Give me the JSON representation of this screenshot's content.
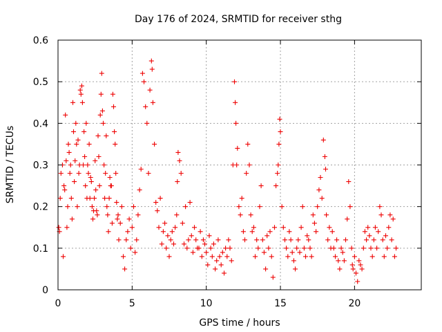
{
  "chart_data": {
    "type": "scatter",
    "title": "Day 176 of 2024, SRMTID for receiver sthg",
    "xlabel": "GPS time / hours",
    "ylabel": "SRMTID / TECUs",
    "xlim": [
      0,
      24.5
    ],
    "ylim": [
      0,
      0.6
    ],
    "xticks": [
      0,
      5,
      10,
      15,
      20
    ],
    "xtick_labels": [
      "0",
      "5",
      "10",
      "15",
      "20"
    ],
    "yticks": [
      0,
      0.1,
      0.2,
      0.3,
      0.4,
      0.5,
      0.6
    ],
    "ytick_labels": [
      "0",
      "0.1",
      "0.2",
      "0.3",
      "0.4",
      "0.5",
      "0.6"
    ],
    "grid": true,
    "marker": "+",
    "marker_color": "#ee0000",
    "series": [
      {
        "name": "SRMTID",
        "x": [
          0.05,
          0.1,
          0.15,
          0.2,
          0.3,
          0.35,
          0.4,
          0.45,
          0.5,
          0.55,
          0.6,
          0.65,
          0.7,
          0.75,
          0.8,
          0.85,
          0.9,
          0.95,
          1.0,
          1.05,
          1.1,
          1.15,
          1.2,
          1.25,
          1.3,
          1.35,
          1.4,
          1.45,
          1.5,
          1.55,
          1.6,
          1.65,
          1.7,
          1.75,
          1.8,
          1.85,
          1.9,
          1.95,
          2.0,
          2.05,
          2.1,
          2.15,
          2.2,
          2.25,
          2.3,
          2.35,
          2.4,
          2.45,
          2.5,
          2.55,
          2.6,
          2.65,
          2.7,
          2.75,
          2.8,
          2.85,
          2.9,
          2.95,
          3.0,
          3.05,
          3.1,
          3.15,
          3.2,
          3.25,
          3.3,
          3.35,
          3.4,
          3.45,
          3.5,
          3.55,
          3.6,
          3.65,
          3.7,
          3.75,
          3.8,
          3.85,
          3.9,
          3.95,
          4.0,
          4.05,
          4.1,
          4.2,
          4.3,
          4.4,
          4.5,
          4.6,
          4.7,
          4.8,
          4.9,
          5.0,
          5.1,
          5.2,
          5.3,
          5.4,
          5.5,
          5.6,
          5.7,
          5.8,
          5.9,
          6.0,
          6.1,
          6.2,
          6.3,
          6.35,
          6.4,
          6.5,
          6.6,
          6.7,
          6.8,
          6.9,
          7.0,
          7.1,
          7.2,
          7.3,
          7.4,
          7.5,
          7.6,
          7.7,
          7.8,
          7.9,
          8.0,
          8.05,
          8.1,
          8.2,
          8.3,
          8.4,
          8.5,
          8.6,
          8.7,
          8.8,
          8.9,
          9.0,
          9.1,
          9.2,
          9.3,
          9.4,
          9.5,
          9.6,
          9.7,
          9.8,
          9.9,
          10.0,
          10.1,
          10.2,
          10.3,
          10.4,
          10.5,
          10.6,
          10.7,
          10.8,
          10.9,
          11.0,
          11.1,
          11.2,
          11.3,
          11.4,
          11.5,
          11.6,
          11.7,
          11.8,
          11.9,
          11.95,
          12.0,
          12.05,
          12.1,
          12.2,
          12.3,
          12.4,
          12.5,
          12.6,
          12.7,
          12.8,
          12.9,
          13.0,
          13.1,
          13.2,
          13.3,
          13.4,
          13.5,
          13.6,
          13.7,
          13.8,
          13.9,
          14.0,
          14.1,
          14.2,
          14.3,
          14.4,
          14.5,
          14.6,
          14.7,
          14.8,
          14.85,
          14.9,
          14.95,
          15.0,
          15.1,
          15.2,
          15.3,
          15.4,
          15.5,
          15.6,
          15.7,
          15.8,
          15.9,
          16.0,
          16.1,
          16.2,
          16.3,
          16.4,
          16.5,
          16.6,
          16.7,
          16.8,
          16.9,
          17.0,
          17.1,
          17.2,
          17.3,
          17.4,
          17.5,
          17.6,
          17.7,
          17.8,
          17.9,
          18.0,
          18.05,
          18.1,
          18.2,
          18.3,
          18.4,
          18.5,
          18.6,
          18.7,
          18.8,
          18.9,
          19.0,
          19.1,
          19.2,
          19.3,
          19.4,
          19.5,
          19.6,
          19.7,
          19.8,
          19.85,
          19.9,
          20.0,
          20.1,
          20.2,
          20.3,
          20.4,
          20.5,
          20.6,
          20.7,
          20.8,
          20.9,
          21.0,
          21.1,
          21.2,
          21.3,
          21.4,
          21.5,
          21.6,
          21.7,
          21.8,
          21.9,
          22.0,
          22.1,
          22.2,
          22.3,
          22.4,
          22.5,
          22.6,
          22.7,
          22.8
        ],
        "y": [
          0.15,
          0.14,
          0.22,
          0.28,
          0.3,
          0.08,
          0.25,
          0.24,
          0.42,
          0.31,
          0.15,
          0.2,
          0.35,
          0.33,
          0.28,
          0.3,
          0.22,
          0.17,
          0.45,
          0.38,
          0.26,
          0.31,
          0.4,
          0.35,
          0.2,
          0.36,
          0.28,
          0.3,
          0.48,
          0.47,
          0.49,
          0.45,
          0.3,
          0.38,
          0.32,
          0.25,
          0.4,
          0.22,
          0.3,
          0.28,
          0.35,
          0.22,
          0.27,
          0.26,
          0.2,
          0.17,
          0.19,
          0.22,
          0.31,
          0.24,
          0.19,
          0.18,
          0.37,
          0.32,
          0.25,
          0.42,
          0.47,
          0.52,
          0.43,
          0.4,
          0.3,
          0.22,
          0.28,
          0.37,
          0.2,
          0.18,
          0.14,
          0.22,
          0.27,
          0.25,
          0.25,
          0.16,
          0.47,
          0.44,
          0.38,
          0.35,
          0.28,
          0.21,
          0.17,
          0.18,
          0.12,
          0.16,
          0.2,
          0.08,
          0.05,
          0.12,
          0.14,
          0.17,
          0.1,
          0.15,
          0.2,
          0.09,
          0.12,
          0.18,
          0.24,
          0.29,
          0.52,
          0.5,
          0.44,
          0.4,
          0.28,
          0.48,
          0.55,
          0.53,
          0.45,
          0.35,
          0.21,
          0.19,
          0.15,
          0.22,
          0.11,
          0.14,
          0.16,
          0.1,
          0.13,
          0.08,
          0.12,
          0.14,
          0.11,
          0.15,
          0.18,
          0.26,
          0.33,
          0.31,
          0.28,
          0.16,
          0.11,
          0.2,
          0.1,
          0.12,
          0.21,
          0.13,
          0.09,
          0.15,
          0.12,
          0.1,
          0.1,
          0.14,
          0.08,
          0.12,
          0.11,
          0.09,
          0.06,
          0.13,
          0.1,
          0.08,
          0.11,
          0.05,
          0.07,
          0.12,
          0.08,
          0.06,
          0.09,
          0.04,
          0.1,
          0.08,
          0.12,
          0.1,
          0.07,
          0.3,
          0.5,
          0.45,
          0.4,
          0.3,
          0.34,
          0.2,
          0.18,
          0.22,
          0.14,
          0.12,
          0.28,
          0.35,
          0.3,
          0.18,
          0.14,
          0.15,
          0.08,
          0.12,
          0.1,
          0.2,
          0.25,
          0.12,
          0.09,
          0.05,
          0.13,
          0.1,
          0.14,
          0.08,
          0.03,
          0.15,
          0.25,
          0.28,
          0.3,
          0.35,
          0.41,
          0.38,
          0.2,
          0.15,
          0.12,
          0.1,
          0.08,
          0.14,
          0.12,
          0.09,
          0.07,
          0.05,
          0.1,
          0.12,
          0.09,
          0.15,
          0.2,
          0.1,
          0.08,
          0.13,
          0.12,
          0.1,
          0.08,
          0.18,
          0.16,
          0.14,
          0.2,
          0.24,
          0.27,
          0.22,
          0.36,
          0.32,
          0.29,
          0.18,
          0.12,
          0.15,
          0.1,
          0.14,
          0.1,
          0.08,
          0.12,
          0.07,
          0.05,
          0.1,
          0.09,
          0.07,
          0.12,
          0.17,
          0.26,
          0.2,
          0.1,
          0.06,
          0.05,
          0.08,
          0.04,
          0.02,
          0.07,
          0.06,
          0.05,
          0.1,
          0.14,
          0.12,
          0.15,
          0.13,
          0.1,
          0.08,
          0.12,
          0.15,
          0.1,
          0.14,
          0.2,
          0.18,
          0.12,
          0.08,
          0.13,
          0.1,
          0.15,
          0.18,
          0.12,
          0.17,
          0.08,
          0.1
        ]
      }
    ]
  }
}
